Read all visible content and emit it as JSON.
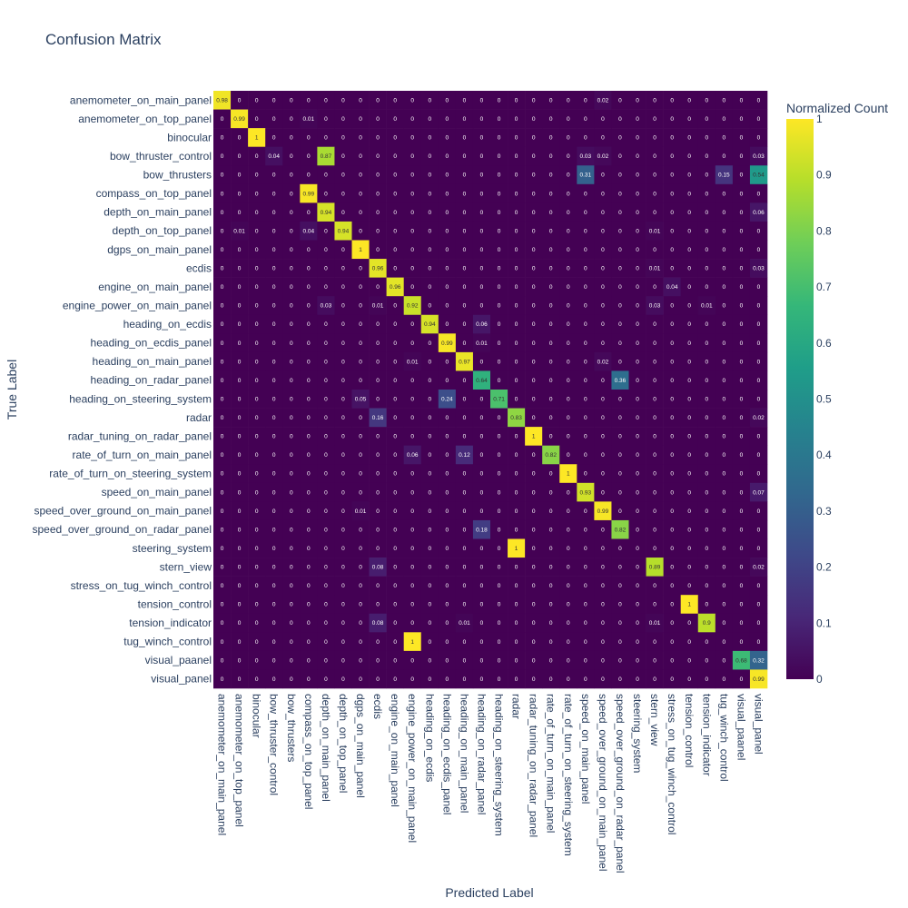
{
  "chart_data": {
    "type": "heatmap",
    "title": "Confusion Matrix",
    "xlabel": "Predicted Label",
    "ylabel": "True Label",
    "colorbar_title": "Normalized Count",
    "colorbar_ticks": [
      "0",
      "0.1",
      "0.2",
      "0.3",
      "0.4",
      "0.5",
      "0.6",
      "0.7",
      "0.8",
      "0.9",
      "1"
    ],
    "colorscale": "viridis",
    "zrange": [
      0,
      1
    ],
    "labels": [
      "anemometer_on_main_panel",
      "anemometer_on_top_panel",
      "binocular",
      "bow_thruster_control",
      "bow_thrusters",
      "compass_on_top_panel",
      "depth_on_main_panel",
      "depth_on_top_panel",
      "dgps_on_main_panel",
      "ecdis",
      "engine_on_main_panel",
      "engine_power_on_main_panel",
      "heading_on_ecdis",
      "heading_on_ecdis_panel",
      "heading_on_main_panel",
      "heading_on_radar_panel",
      "heading_on_steering_system",
      "radar",
      "radar_tuning_on_radar_panel",
      "rate_of_turn_on_main_panel",
      "rate_of_turn_on_steering_system",
      "speed_on_main_panel",
      "speed_over_ground_on_main_panel",
      "speed_over_ground_on_radar_panel",
      "steering_system",
      "stern_view",
      "stress_on_tug_winch_control",
      "tension_control",
      "tension_indicator",
      "tug_winch_control",
      "visual_paanel",
      "visual_panel"
    ],
    "matrix": [
      [
        0.98,
        0,
        0,
        0,
        0,
        0,
        0,
        0,
        0,
        0,
        0,
        0,
        0,
        0,
        0,
        0,
        0,
        0,
        0,
        0,
        0,
        0,
        0.02,
        0,
        0,
        0,
        0,
        0,
        0,
        0,
        0,
        0
      ],
      [
        0,
        0.99,
        0,
        0,
        0,
        0.01,
        0,
        0,
        0,
        0,
        0,
        0,
        0,
        0,
        0,
        0,
        0,
        0,
        0,
        0,
        0,
        0,
        0,
        0,
        0,
        0,
        0,
        0,
        0,
        0,
        0,
        0
      ],
      [
        0,
        0,
        1,
        0,
        0,
        0,
        0,
        0,
        0,
        0,
        0,
        0,
        0,
        0,
        0,
        0,
        0,
        0,
        0,
        0,
        0,
        0,
        0,
        0,
        0,
        0,
        0,
        0,
        0,
        0,
        0,
        0
      ],
      [
        0,
        0,
        0,
        0.04,
        0,
        0,
        0.87,
        0,
        0,
        0,
        0,
        0,
        0,
        0,
        0,
        0,
        0,
        0,
        0,
        0,
        0,
        0.03,
        0.02,
        0,
        0,
        0,
        0,
        0,
        0,
        0,
        0,
        0.03
      ],
      [
        0,
        0,
        0,
        0,
        0,
        0,
        0,
        0,
        0,
        0,
        0,
        0,
        0,
        0,
        0,
        0,
        0,
        0,
        0,
        0,
        0,
        0.31,
        0,
        0,
        0,
        0,
        0,
        0,
        0,
        0.15,
        0,
        0.54
      ],
      [
        0,
        0,
        0,
        0,
        0,
        0.99,
        0,
        0,
        0,
        0,
        0,
        0,
        0,
        0,
        0,
        0,
        0,
        0,
        0,
        0,
        0,
        0,
        0,
        0,
        0,
        0,
        0,
        0,
        0,
        0,
        0,
        0
      ],
      [
        0,
        0,
        0,
        0,
        0,
        0,
        0.94,
        0,
        0,
        0,
        0,
        0,
        0,
        0,
        0,
        0,
        0,
        0,
        0,
        0,
        0,
        0,
        0,
        0,
        0,
        0,
        0,
        0,
        0,
        0,
        0,
        0.06
      ],
      [
        0,
        0.01,
        0,
        0,
        0,
        0.04,
        0,
        0.94,
        0,
        0,
        0,
        0,
        0,
        0,
        0,
        0,
        0,
        0,
        0,
        0,
        0,
        0,
        0,
        0,
        0,
        0.01,
        0,
        0,
        0,
        0,
        0,
        0
      ],
      [
        0,
        0,
        0,
        0,
        0,
        0,
        0,
        0,
        1,
        0,
        0,
        0,
        0,
        0,
        0,
        0,
        0,
        0,
        0,
        0,
        0,
        0,
        0,
        0,
        0,
        0,
        0,
        0,
        0,
        0,
        0,
        0
      ],
      [
        0,
        0,
        0,
        0,
        0,
        0,
        0,
        0,
        0,
        0.96,
        0,
        0,
        0,
        0,
        0,
        0,
        0,
        0,
        0,
        0,
        0,
        0,
        0,
        0,
        0,
        0.01,
        0,
        0,
        0,
        0,
        0,
        0.03
      ],
      [
        0,
        0,
        0,
        0,
        0,
        0,
        0,
        0,
        0,
        0,
        0.96,
        0,
        0,
        0,
        0,
        0,
        0,
        0,
        0,
        0,
        0,
        0,
        0,
        0,
        0,
        0,
        0.04,
        0,
        0,
        0,
        0,
        0
      ],
      [
        0,
        0,
        0,
        0,
        0,
        0,
        0.03,
        0,
        0,
        0.01,
        0,
        0.92,
        0,
        0,
        0,
        0,
        0,
        0,
        0,
        0,
        0,
        0,
        0,
        0,
        0,
        0.03,
        0,
        0,
        0.01,
        0,
        0,
        0
      ],
      [
        0,
        0,
        0,
        0,
        0,
        0,
        0,
        0,
        0,
        0,
        0,
        0,
        0.94,
        0,
        0,
        0.06,
        0,
        0,
        0,
        0,
        0,
        0,
        0,
        0,
        0,
        0,
        0,
        0,
        0,
        0,
        0,
        0
      ],
      [
        0,
        0,
        0,
        0,
        0,
        0,
        0,
        0,
        0,
        0,
        0,
        0,
        0,
        0.99,
        0,
        0.01,
        0,
        0,
        0,
        0,
        0,
        0,
        0,
        0,
        0,
        0,
        0,
        0,
        0,
        0,
        0,
        0
      ],
      [
        0,
        0,
        0,
        0,
        0,
        0,
        0,
        0,
        0,
        0,
        0,
        0.01,
        0,
        0,
        0.97,
        0,
        0,
        0,
        0,
        0,
        0,
        0,
        0.02,
        0,
        0,
        0,
        0,
        0,
        0,
        0,
        0,
        0
      ],
      [
        0,
        0,
        0,
        0,
        0,
        0,
        0,
        0,
        0,
        0,
        0,
        0,
        0,
        0,
        0,
        0.64,
        0,
        0,
        0,
        0,
        0,
        0,
        0,
        0.36,
        0,
        0,
        0,
        0,
        0,
        0,
        0,
        0
      ],
      [
        0,
        0,
        0,
        0,
        0,
        0,
        0,
        0,
        0.05,
        0,
        0,
        0,
        0,
        0.24,
        0,
        0,
        0.71,
        0,
        0,
        0,
        0,
        0,
        0,
        0,
        0,
        0,
        0,
        0,
        0,
        0,
        0,
        0
      ],
      [
        0,
        0,
        0,
        0,
        0,
        0,
        0,
        0,
        0,
        0.16,
        0,
        0,
        0,
        0,
        0,
        0,
        0,
        0.83,
        0,
        0,
        0,
        0,
        0,
        0,
        0,
        0,
        0,
        0,
        0,
        0,
        0,
        0.02
      ],
      [
        0,
        0,
        0,
        0,
        0,
        0,
        0,
        0,
        0,
        0,
        0,
        0,
        0,
        0,
        0,
        0,
        0,
        0,
        1,
        0,
        0,
        0,
        0,
        0,
        0,
        0,
        0,
        0,
        0,
        0,
        0,
        0
      ],
      [
        0,
        0,
        0,
        0,
        0,
        0,
        0,
        0,
        0,
        0,
        0,
        0.06,
        0,
        0,
        0.12,
        0,
        0,
        0,
        0,
        0.82,
        0,
        0,
        0,
        0,
        0,
        0,
        0,
        0,
        0,
        0,
        0,
        0
      ],
      [
        0,
        0,
        0,
        0,
        0,
        0,
        0,
        0,
        0,
        0,
        0,
        0,
        0,
        0,
        0,
        0,
        0,
        0,
        0,
        0,
        1,
        0,
        0,
        0,
        0,
        0,
        0,
        0,
        0,
        0,
        0,
        0
      ],
      [
        0,
        0,
        0,
        0,
        0,
        0,
        0,
        0,
        0,
        0,
        0,
        0,
        0,
        0,
        0,
        0,
        0,
        0,
        0,
        0,
        0,
        0.93,
        0,
        0,
        0,
        0,
        0,
        0,
        0,
        0,
        0,
        0.07
      ],
      [
        0,
        0,
        0,
        0,
        0,
        0,
        0,
        0,
        0.01,
        0,
        0,
        0,
        0,
        0,
        0,
        0,
        0,
        0,
        0,
        0,
        0,
        0,
        0.99,
        0,
        0,
        0,
        0,
        0,
        0,
        0,
        0,
        0
      ],
      [
        0,
        0,
        0,
        0,
        0,
        0,
        0,
        0,
        0,
        0,
        0,
        0,
        0,
        0,
        0,
        0.18,
        0,
        0,
        0,
        0,
        0,
        0,
        0,
        0.82,
        0,
        0,
        0,
        0,
        0,
        0,
        0,
        0
      ],
      [
        0,
        0,
        0,
        0,
        0,
        0,
        0,
        0,
        0,
        0,
        0,
        0,
        0,
        0,
        0,
        0,
        0,
        1,
        0,
        0,
        0,
        0,
        0,
        0,
        0,
        0,
        0,
        0,
        0,
        0,
        0,
        0
      ],
      [
        0,
        0,
        0,
        0,
        0,
        0,
        0,
        0,
        0,
        0.08,
        0,
        0,
        0,
        0,
        0,
        0,
        0,
        0,
        0,
        0,
        0,
        0,
        0,
        0,
        0,
        0.89,
        0,
        0,
        0,
        0,
        0,
        0.02
      ],
      [
        0,
        0,
        0,
        0,
        0,
        0,
        0,
        0,
        0,
        0,
        0,
        0,
        0,
        0,
        0,
        0,
        0,
        0,
        0,
        0,
        0,
        0,
        0,
        0,
        0,
        0,
        0,
        0,
        0,
        0,
        0,
        0
      ],
      [
        0,
        0,
        0,
        0,
        0,
        0,
        0,
        0,
        0,
        0,
        0,
        0,
        0,
        0,
        0,
        0,
        0,
        0,
        0,
        0,
        0,
        0,
        0,
        0,
        0,
        0,
        0,
        1,
        0,
        0,
        0,
        0
      ],
      [
        0,
        0,
        0,
        0,
        0,
        0,
        0,
        0,
        0,
        0.08,
        0,
        0,
        0,
        0,
        0.01,
        0,
        0,
        0,
        0,
        0,
        0,
        0,
        0,
        0,
        0,
        0.01,
        0,
        0,
        0.9,
        0,
        0,
        0
      ],
      [
        0,
        0,
        0,
        0,
        0,
        0,
        0,
        0,
        0,
        0,
        0,
        1,
        0,
        0,
        0,
        0,
        0,
        0,
        0,
        0,
        0,
        0,
        0,
        0,
        0,
        0,
        0,
        0,
        0,
        0,
        0,
        0
      ],
      [
        0,
        0,
        0,
        0,
        0,
        0,
        0,
        0,
        0,
        0,
        0,
        0,
        0,
        0,
        0,
        0,
        0,
        0,
        0,
        0,
        0,
        0,
        0,
        0,
        0,
        0,
        0,
        0,
        0,
        0,
        0.68,
        0.32
      ],
      [
        0,
        0,
        0,
        0,
        0,
        0,
        0,
        0,
        0,
        0,
        0,
        0,
        0,
        0,
        0,
        0,
        0,
        0,
        0,
        0,
        0,
        0,
        0,
        0,
        0,
        0,
        0,
        0,
        0,
        0,
        0,
        0.99
      ]
    ]
  }
}
